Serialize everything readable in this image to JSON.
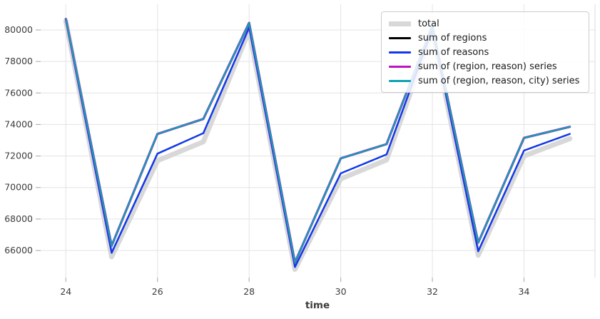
{
  "chart_data": {
    "type": "line",
    "title": "",
    "xlabel": "time",
    "ylabel": "",
    "grid": true,
    "legend_position": "upper right",
    "x": [
      24,
      25,
      26,
      27,
      28,
      29,
      30,
      31,
      32,
      33,
      34,
      35
    ],
    "series": [
      {
        "name": "total",
        "color": "#d8d8d8",
        "linewidth": 7,
        "values": [
          80560,
          65600,
          71700,
          72900,
          79950,
          64800,
          70550,
          71750,
          79900,
          65700,
          72000,
          73100
        ]
      },
      {
        "name": "sum of regions",
        "color": "#000000",
        "linewidth": 2.5,
        "values": [
          80700,
          66300,
          73400,
          74350,
          80450,
          65250,
          71850,
          72750,
          80250,
          66500,
          73150,
          73850
        ]
      },
      {
        "name": "sum of reasons",
        "color": "#1138e8",
        "linewidth": 2.5,
        "values": [
          80620,
          65850,
          72150,
          73450,
          80150,
          64950,
          70900,
          72100,
          80050,
          65950,
          72350,
          73400
        ]
      },
      {
        "name": "sum of (region, reason) series",
        "color": "#bd12bd",
        "linewidth": 3.2,
        "values": [
          80700,
          66300,
          73400,
          74350,
          80450,
          65250,
          71850,
          72750,
          80250,
          66500,
          73150,
          73850
        ]
      },
      {
        "name": "sum of (region, reason, city) series",
        "color": "#0da3b2",
        "linewidth": 2.3,
        "values": [
          80700,
          66300,
          73400,
          74350,
          80450,
          65250,
          71850,
          72750,
          80250,
          66500,
          73150,
          73850
        ]
      }
    ],
    "xticks": [
      24,
      26,
      28,
      30,
      32,
      34
    ],
    "yticks": [
      66000,
      68000,
      70000,
      72000,
      74000,
      76000,
      78000,
      80000
    ],
    "xlim": [
      23.45,
      35.55
    ],
    "ylim": [
      64280,
      81630
    ]
  }
}
